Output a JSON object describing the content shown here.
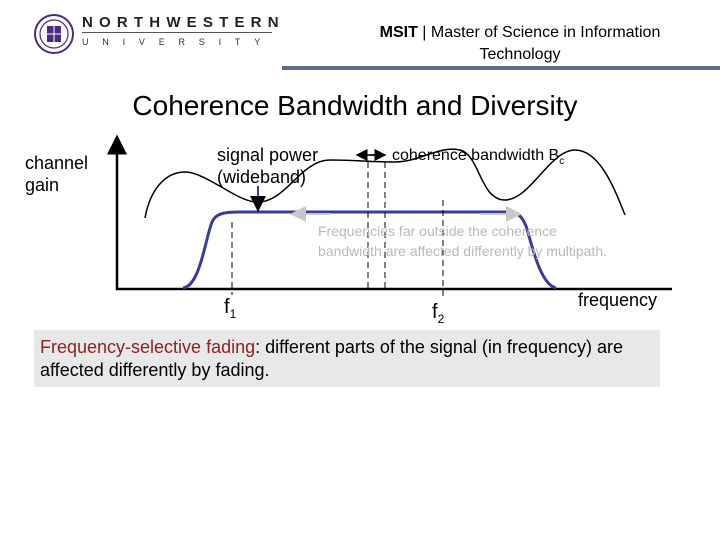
{
  "logo": {
    "line1": "NORTHWESTERN",
    "line2": "UNIVERSITY",
    "seal_color": "#4e2a84"
  },
  "header": {
    "bold": "MSIT",
    "separator": " | ",
    "text_line1": "Master of Science in Information",
    "text_line2": "Technology",
    "rule_color": "#5a6e96"
  },
  "title": "Coherence Bandwidth and Diversity",
  "diagram": {
    "y_label_line1": "channel",
    "y_label_line2": "gain",
    "signal_label_line1": "signal power",
    "signal_label_line2": "(wideband)",
    "coherence_label": "coherence bandwidth B",
    "coherence_sub": "c",
    "faded_note_line1": "Frequencies far outside the coherence",
    "faded_note_line2": "bandwidth are affected differently by multipath.",
    "f1": "f",
    "f1_sub": "1",
    "f2": "f",
    "f2_sub": "2",
    "x_label": "frequency",
    "signal_color": "#3a3aa0"
  },
  "caption": {
    "highlight": "Frequency-selective fading",
    "rest": ": different parts of the signal (in frequency) are affected differently by fading.",
    "highlight_color": "#8c2222"
  }
}
